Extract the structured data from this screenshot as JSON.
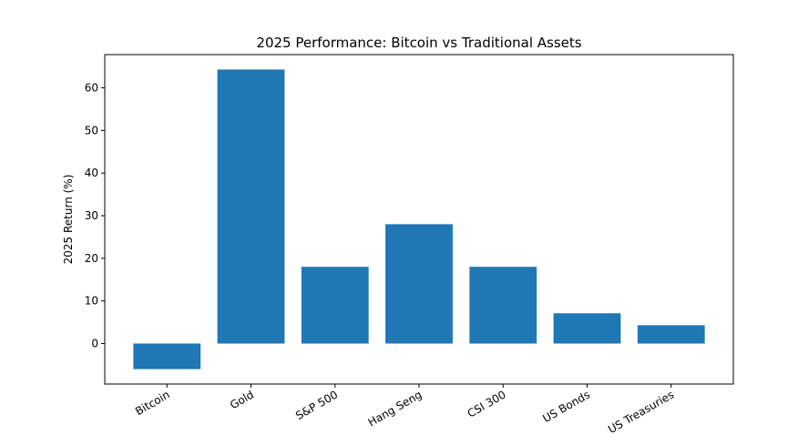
{
  "chart_data": {
    "type": "bar",
    "title": "2025 Performance: Bitcoin vs Traditional Assets",
    "xlabel": "",
    "ylabel": "2025 Return (%)",
    "categories": [
      "Bitcoin",
      "Gold",
      "S&P 500",
      "Hang Seng",
      "CSI 300",
      "US Bonds",
      "US Treasuries"
    ],
    "values": [
      -6.0,
      64.3,
      18.0,
      28.0,
      18.0,
      7.1,
      4.3
    ],
    "ylim": [
      -9.5,
      67.8
    ],
    "yticks": [
      0,
      10,
      20,
      30,
      40,
      50,
      60
    ],
    "grid": false,
    "bar_color": "#1f77b4"
  }
}
